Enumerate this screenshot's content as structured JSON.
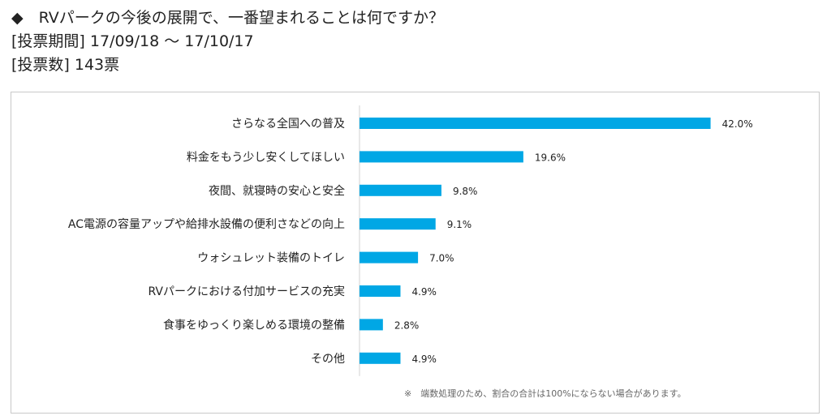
{
  "header": {
    "question": "◆　RVパークの今後の展開で、一番望まれることは何ですか？",
    "period": "[投票期間] 17/09/18 〜 17/10/17",
    "votes": "[投票数] 143票"
  },
  "chart_data": {
    "type": "bar",
    "orientation": "horizontal",
    "categories": [
      "さらなる全国への普及",
      "料金をもう少し安くしてほしい",
      "夜間、就寝時の安心と安全",
      "AC電源の容量アップや給排水設備の便利さなどの向上",
      "ウォシュレット装備のトイレ",
      "RVパークにおける付加サービスの充実",
      "食事をゆっくり楽しめる環境の整備",
      "その他"
    ],
    "values": [
      42.0,
      19.6,
      9.8,
      9.1,
      7.0,
      4.9,
      2.8,
      4.9
    ],
    "value_labels": [
      "42.0%",
      "19.6%",
      "9.8%",
      "9.1%",
      "7.0%",
      "4.9%",
      "2.8%",
      "4.9%"
    ],
    "unit": "%",
    "bar_color": "#00a7e5",
    "grid": false,
    "legend": "none",
    "footnote": "※　端数処理のため、割合の合計は100%にならない場合があります。"
  }
}
